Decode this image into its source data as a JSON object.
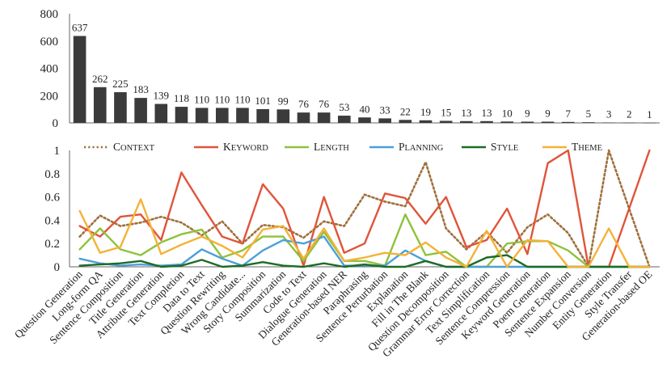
{
  "chart_data": [
    {
      "type": "bar",
      "ylim": [
        0,
        800
      ],
      "yticks": [
        0,
        200,
        400,
        600,
        800
      ],
      "grid": false,
      "colors": {
        "bar": "#3b3b3b"
      },
      "categories": [
        "Question Generation",
        "Long-form QA",
        "Sentence Composition",
        "Title Generation",
        "Attribute Generation",
        "Text Completion",
        "Data to Text",
        "Question Rewriting",
        "Wrong Candidate...",
        "Story Composition",
        "Summarization",
        "Code to Text",
        "Dialogue Generation",
        "Generation-based NER",
        "Paraphrasing",
        "Sentence Perturbation",
        "Explanation",
        "Fill in The Blank",
        "Question Decomposition",
        "Grammar Error Correction",
        "Text Simplification",
        "Sentence Compression",
        "Keyword Generation",
        "Poem Generation",
        "Sentence Expansion",
        "Number Conversion",
        "Entity Generation",
        "Style Transfer",
        "Generation-based OE"
      ],
      "values": [
        637,
        262,
        225,
        183,
        139,
        118,
        110,
        110,
        110,
        101,
        99,
        76,
        76,
        53,
        40,
        33,
        22,
        19,
        15,
        13,
        13,
        10,
        9,
        9,
        7,
        5,
        3,
        2,
        1
      ],
      "value_labels": [
        "637",
        "262",
        "225",
        "183",
        "139",
        "118",
        "110",
        "110",
        "110",
        "101",
        "99",
        "76",
        "76",
        "53",
        "40",
        "33",
        "22",
        "19",
        "15",
        "13",
        "13",
        "10",
        "9",
        "9",
        "7",
        "5",
        "3",
        "2",
        "1"
      ]
    },
    {
      "type": "line",
      "ylim": [
        0,
        1
      ],
      "yticks": [
        0,
        0.2,
        0.4,
        0.6,
        0.8,
        1
      ],
      "ytick_labels": [
        "0",
        "0.2",
        "0.4",
        "0.6",
        "0.8",
        "1"
      ],
      "grid": false,
      "legend_position": "top",
      "categories_shared_with_bar_chart": true,
      "series": [
        {
          "name": "Context",
          "color": "#a0703c",
          "style": "dotted",
          "values": [
            0.26,
            0.44,
            0.35,
            0.38,
            0.43,
            0.38,
            0.27,
            0.39,
            0.2,
            0.36,
            0.34,
            0.25,
            0.39,
            0.35,
            0.62,
            0.56,
            0.52,
            0.9,
            0.33,
            0.15,
            0.3,
            0.12,
            0.34,
            0.45,
            0.29,
            0.0,
            1.0,
            0.5,
            0.0
          ]
        },
        {
          "name": "Keyword",
          "color": "#e0543a",
          "style": "solid",
          "values": [
            0.35,
            0.26,
            0.43,
            0.45,
            0.23,
            0.81,
            0.53,
            0.26,
            0.2,
            0.71,
            0.5,
            0.01,
            0.6,
            0.12,
            0.2,
            0.63,
            0.59,
            0.37,
            0.6,
            0.17,
            0.23,
            0.5,
            0.11,
            0.89,
            1.0,
            0.0,
            0.0,
            0.5,
            1.0
          ]
        },
        {
          "name": "Length",
          "color": "#8ec23a",
          "style": "solid",
          "values": [
            0.15,
            0.33,
            0.15,
            0.1,
            0.21,
            0.28,
            0.32,
            0.08,
            0.14,
            0.26,
            0.26,
            0.05,
            0.3,
            0.05,
            0.05,
            0.01,
            0.45,
            0.1,
            0.13,
            0.0,
            0.0,
            0.2,
            0.22,
            0.22,
            0.14,
            0.0,
            0.0,
            0.0,
            0.0
          ]
        },
        {
          "name": "Planning",
          "color": "#4c9fd8",
          "style": "solid",
          "values": [
            0.07,
            0.03,
            0.01,
            0.02,
            0.01,
            0.02,
            0.15,
            0.07,
            0.01,
            0.14,
            0.23,
            0.2,
            0.26,
            0.01,
            0.01,
            0.01,
            0.14,
            0.05,
            0.0,
            0.0,
            0.0,
            0.0,
            0.0,
            0.0,
            0.0,
            0.0,
            0.0,
            0.0,
            0.0
          ]
        },
        {
          "name": "Style",
          "color": "#1d6b26",
          "style": "solid",
          "values": [
            0.01,
            0.02,
            0.03,
            0.05,
            0.0,
            0.01,
            0.06,
            0.0,
            0.01,
            0.04,
            0.01,
            0.0,
            0.03,
            0.0,
            0.02,
            0.0,
            0.0,
            0.05,
            0.0,
            0.0,
            0.08,
            0.1,
            0.0,
            0.0,
            0.0,
            0.0,
            0.0,
            0.0,
            0.0
          ]
        },
        {
          "name": "Theme",
          "color": "#f4b237",
          "style": "solid",
          "values": [
            0.48,
            0.12,
            0.17,
            0.58,
            0.11,
            0.19,
            0.26,
            0.18,
            0.08,
            0.32,
            0.35,
            0.07,
            0.33,
            0.05,
            0.08,
            0.12,
            0.1,
            0.21,
            0.08,
            0.0,
            0.31,
            0.0,
            0.23,
            0.22,
            0.0,
            0.0,
            0.33,
            0.0,
            0.0
          ]
        }
      ]
    }
  ]
}
